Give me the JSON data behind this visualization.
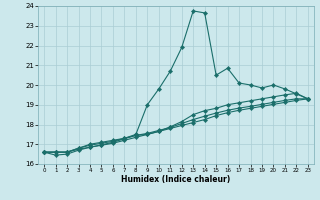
{
  "title": "",
  "xlabel": "Humidex (Indice chaleur)",
  "bg_color": "#cce8ec",
  "grid_color": "#aacdd4",
  "line_color": "#1a6e6a",
  "xlim": [
    -0.5,
    23.5
  ],
  "ylim": [
    16,
    24
  ],
  "xticks": [
    0,
    1,
    2,
    3,
    4,
    5,
    6,
    7,
    8,
    9,
    10,
    11,
    12,
    13,
    14,
    15,
    16,
    17,
    18,
    19,
    20,
    21,
    22,
    23
  ],
  "yticks": [
    16,
    17,
    18,
    19,
    20,
    21,
    22,
    23,
    24
  ],
  "series1_x": [
    0,
    1,
    2,
    3,
    4,
    5,
    6,
    7,
    8,
    9,
    10,
    11,
    12,
    13,
    14,
    15,
    16,
    17,
    18,
    19,
    20,
    21,
    22,
    23
  ],
  "series1_y": [
    16.6,
    16.6,
    16.6,
    16.8,
    17.0,
    17.1,
    17.2,
    17.3,
    17.5,
    19.0,
    19.8,
    20.7,
    21.9,
    23.75,
    23.65,
    20.5,
    20.85,
    20.1,
    20.0,
    19.85,
    20.0,
    19.8,
    19.55,
    19.3
  ],
  "series2_x": [
    0,
    1,
    2,
    3,
    4,
    5,
    6,
    7,
    8,
    9,
    10,
    11,
    12,
    13,
    14,
    15,
    16,
    17,
    18,
    19,
    20,
    21,
    22,
    23
  ],
  "series2_y": [
    16.6,
    16.6,
    16.6,
    16.75,
    16.85,
    16.95,
    17.05,
    17.2,
    17.35,
    17.5,
    17.65,
    17.8,
    17.95,
    18.1,
    18.25,
    18.45,
    18.6,
    18.72,
    18.82,
    18.92,
    19.02,
    19.12,
    19.22,
    19.3
  ],
  "series3_x": [
    0,
    1,
    2,
    3,
    4,
    5,
    6,
    7,
    8,
    9,
    10,
    11,
    12,
    13,
    14,
    15,
    16,
    17,
    18,
    19,
    20,
    21,
    22,
    23
  ],
  "series3_y": [
    16.6,
    16.45,
    16.5,
    16.7,
    16.85,
    16.97,
    17.1,
    17.28,
    17.45,
    17.5,
    17.65,
    17.88,
    18.15,
    18.5,
    18.7,
    18.82,
    19.0,
    19.1,
    19.2,
    19.3,
    19.4,
    19.5,
    19.58,
    19.3
  ],
  "series4_x": [
    0,
    1,
    2,
    3,
    4,
    5,
    6,
    7,
    8,
    9,
    10,
    11,
    12,
    13,
    14,
    15,
    16,
    17,
    18,
    19,
    20,
    21,
    22,
    23
  ],
  "series4_y": [
    16.6,
    16.6,
    16.6,
    16.8,
    16.95,
    17.05,
    17.15,
    17.3,
    17.45,
    17.55,
    17.7,
    17.85,
    18.05,
    18.25,
    18.42,
    18.58,
    18.72,
    18.83,
    18.92,
    19.02,
    19.12,
    19.22,
    19.3,
    19.3
  ]
}
